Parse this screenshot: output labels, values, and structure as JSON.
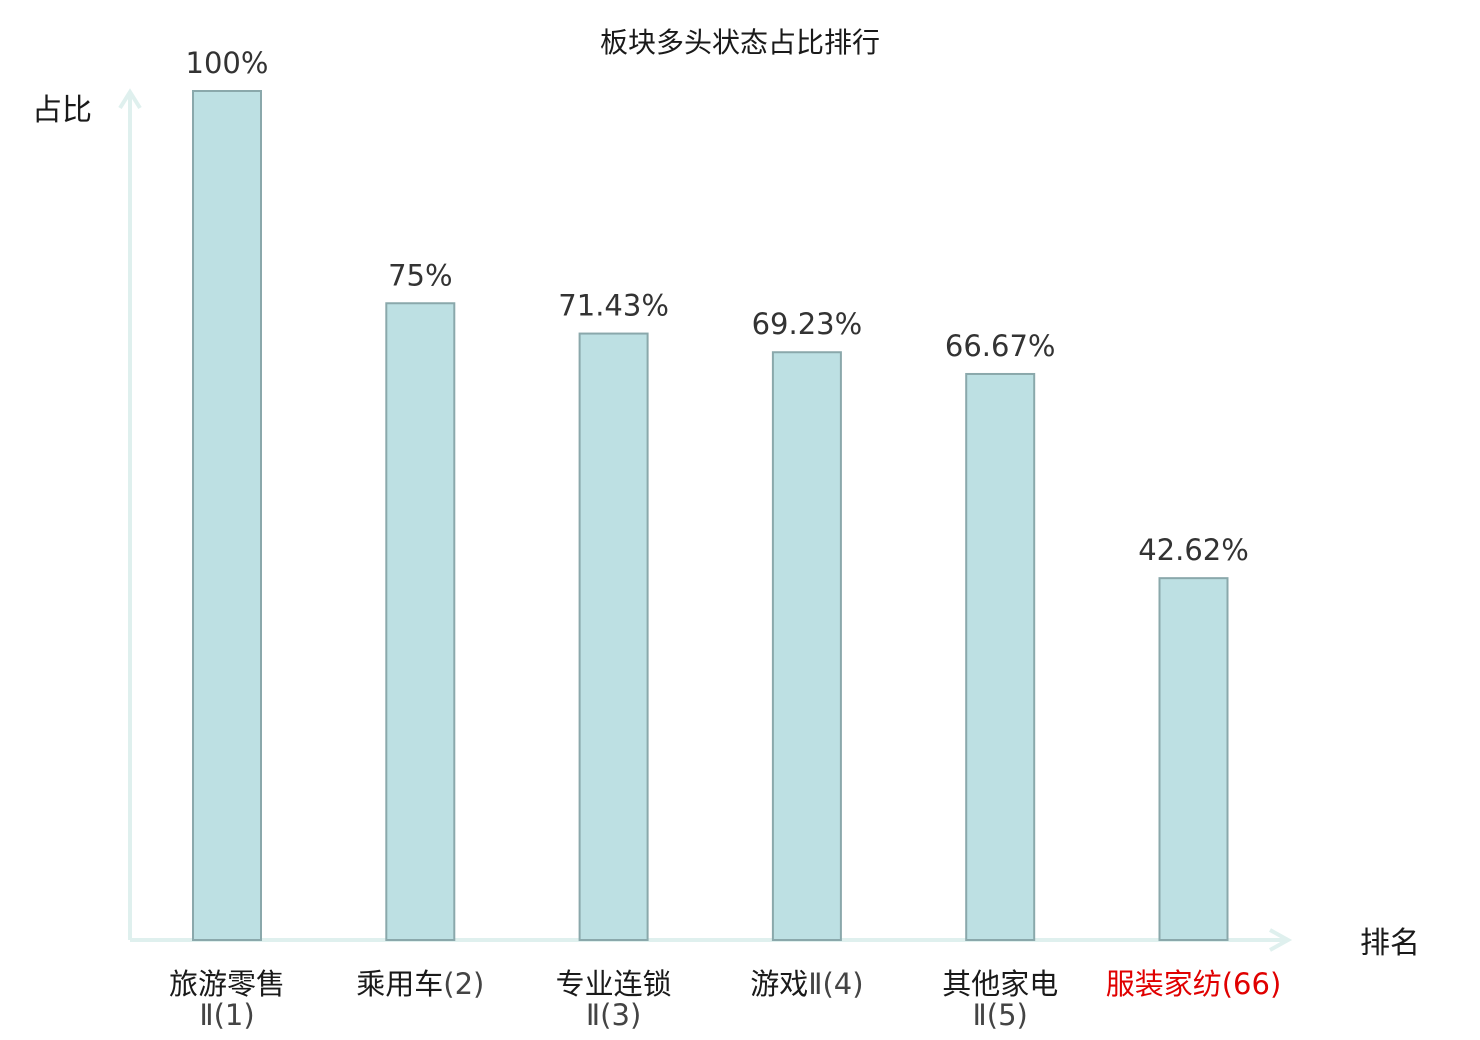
{
  "chart_data": {
    "type": "bar",
    "title": "板块多头状态占比排行",
    "ylabel": "占比",
    "xlabel": "排名",
    "ylim": [
      0,
      100
    ],
    "grid": false,
    "legend": "none",
    "categories": [
      {
        "name": "旅游零售",
        "suffix": "Ⅱ(1)",
        "highlight": false
      },
      {
        "name": "乘用车",
        "suffix": "(2)",
        "highlight": false
      },
      {
        "name": "专业连锁",
        "suffix": "Ⅱ(3)",
        "highlight": false
      },
      {
        "name": "游戏",
        "suffix": "Ⅱ(4)",
        "highlight": false
      },
      {
        "name": "其他家电",
        "suffix": "Ⅱ(5)",
        "highlight": false
      },
      {
        "name": "服装家纺",
        "suffix": "(66)",
        "highlight": true
      }
    ],
    "values": [
      100,
      75,
      71.43,
      69.23,
      66.67,
      42.62
    ],
    "value_labels": [
      "100%",
      "75%",
      "71.43%",
      "69.23%",
      "66.67%",
      "42.62%"
    ],
    "colors": {
      "bar_fill": "#bde0e3",
      "bar_stroke": "#8aa8ab",
      "axis": "#dff0ee",
      "highlight_text": "#e00000"
    }
  }
}
